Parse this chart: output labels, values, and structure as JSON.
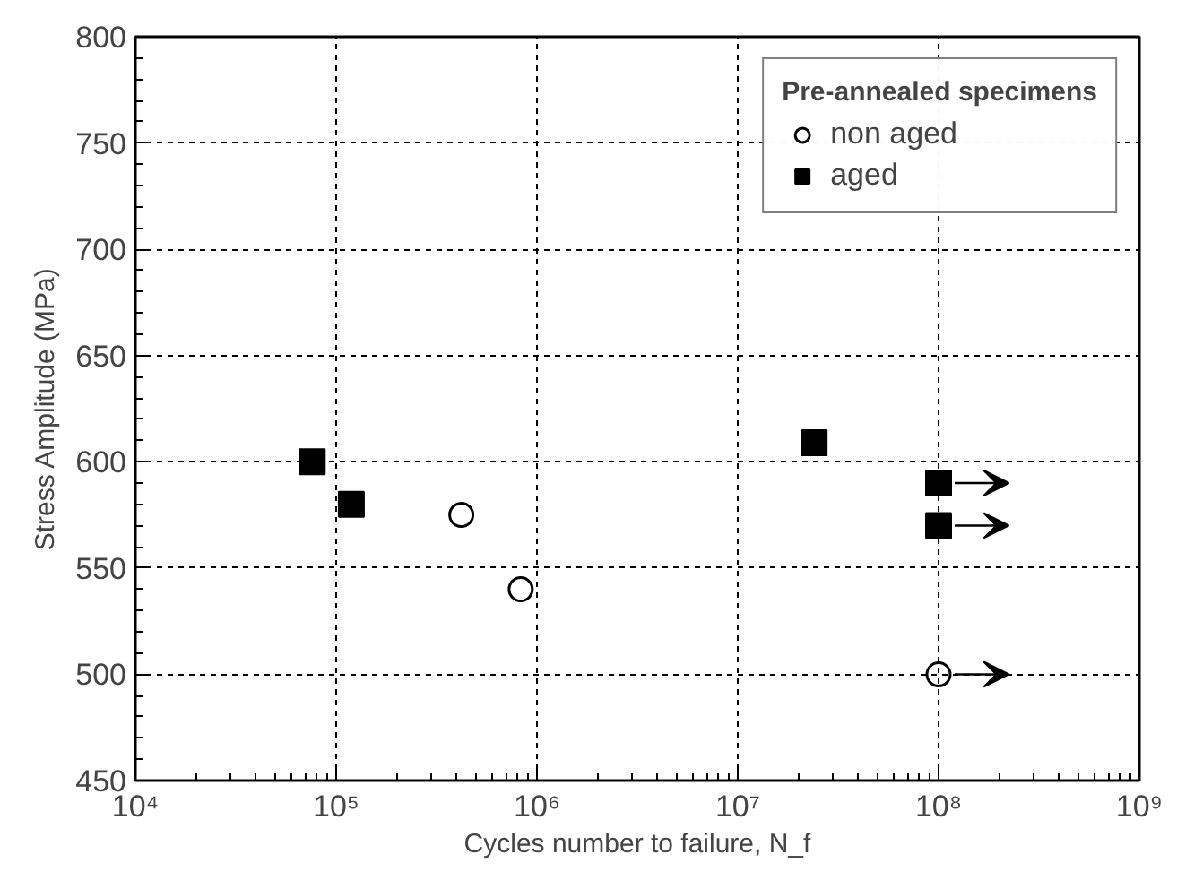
{
  "chart_data": {
    "type": "scatter",
    "xlabel": "Cycles number to failure, N_f",
    "ylabel": "Stress Amplitude (MPa)",
    "legend_title": "Pre-annealed specimens",
    "log": "x",
    "xlim": [
      10000,
      1000000000
    ],
    "ylim": [
      450,
      800
    ],
    "xticks": [
      {
        "value": 10000,
        "label": "10⁴"
      },
      {
        "value": 100000,
        "label": "10⁵"
      },
      {
        "value": 1000000,
        "label": "10⁶"
      },
      {
        "value": 10000000,
        "label": "10⁷"
      },
      {
        "value": 100000000,
        "label": "10⁸"
      },
      {
        "value": 1000000000,
        "label": "10⁹"
      }
    ],
    "yticks": [
      450,
      500,
      550,
      600,
      650,
      700,
      750,
      800
    ],
    "grid": true,
    "legend": "top right",
    "series": [
      {
        "name": "non aged",
        "color": "#000000",
        "marker": "circle",
        "x": [
          420000,
          830000,
          100000000
        ],
        "values": [
          575,
          540,
          500
        ]
      },
      {
        "name": "aged",
        "color": "#000000",
        "marker": "square",
        "x": [
          76000,
          119000,
          24000000,
          100000000,
          100000000
        ],
        "values": [
          600,
          580,
          609,
          590,
          570
        ]
      }
    ]
  }
}
